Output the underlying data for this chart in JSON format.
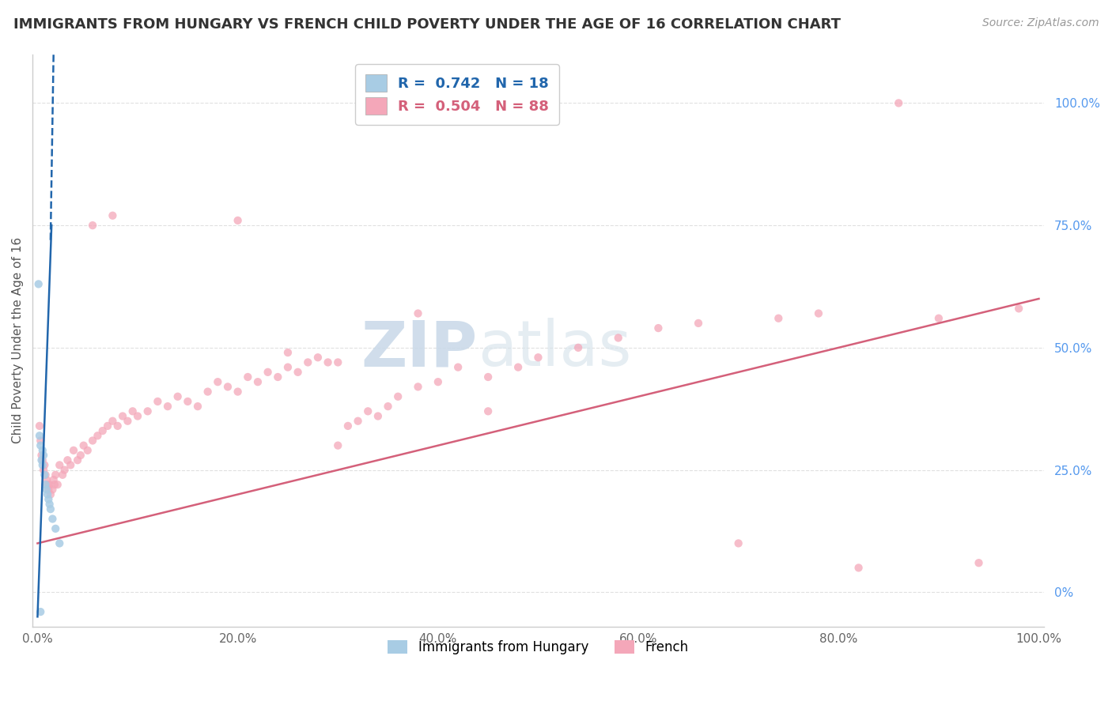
{
  "title": "IMMIGRANTS FROM HUNGARY VS FRENCH CHILD POVERTY UNDER THE AGE OF 16 CORRELATION CHART",
  "source": "Source: ZipAtlas.com",
  "ylabel": "Child Poverty Under the Age of 16",
  "legend_label1": "Immigrants from Hungary",
  "legend_label2": "French",
  "r1": 0.742,
  "n1": 18,
  "r2": 0.504,
  "n2": 88,
  "color1": "#a8cce4",
  "color2": "#f4a7b9",
  "line_color1": "#2166ac",
  "line_color2": "#d4607a",
  "watermark_zip": "ZIP",
  "watermark_atlas": "atlas",
  "blue_scatter_x": [
    0.001,
    0.002,
    0.003,
    0.004,
    0.005,
    0.006,
    0.007,
    0.008,
    0.009,
    0.01,
    0.011,
    0.012,
    0.013,
    0.015,
    0.018,
    0.022,
    0.005,
    0.003
  ],
  "blue_scatter_y": [
    0.63,
    0.32,
    0.3,
    0.27,
    0.26,
    0.28,
    0.24,
    0.22,
    0.21,
    0.2,
    0.19,
    0.18,
    0.17,
    0.15,
    0.13,
    0.1,
    0.29,
    -0.04
  ],
  "blue_line_x0": 0.0,
  "blue_line_x1": 0.017,
  "blue_line_y_intercept": -0.05,
  "blue_line_slope": 42.0,
  "pink_scatter_x": [
    0.002,
    0.003,
    0.004,
    0.005,
    0.006,
    0.007,
    0.008,
    0.009,
    0.01,
    0.011,
    0.012,
    0.013,
    0.015,
    0.016,
    0.017,
    0.018,
    0.02,
    0.022,
    0.025,
    0.027,
    0.03,
    0.033,
    0.036,
    0.04,
    0.043,
    0.046,
    0.05,
    0.055,
    0.06,
    0.065,
    0.07,
    0.075,
    0.08,
    0.085,
    0.09,
    0.095,
    0.1,
    0.11,
    0.12,
    0.13,
    0.14,
    0.15,
    0.16,
    0.17,
    0.18,
    0.19,
    0.2,
    0.21,
    0.22,
    0.23,
    0.24,
    0.25,
    0.26,
    0.27,
    0.28,
    0.29,
    0.3,
    0.31,
    0.32,
    0.33,
    0.34,
    0.35,
    0.36,
    0.38,
    0.4,
    0.42,
    0.45,
    0.48,
    0.5,
    0.54,
    0.58,
    0.62,
    0.66,
    0.7,
    0.74,
    0.78,
    0.82,
    0.86,
    0.9,
    0.94,
    0.98,
    0.055,
    0.075,
    0.2,
    0.25,
    0.3,
    0.38,
    0.45
  ],
  "pink_scatter_y": [
    0.34,
    0.31,
    0.28,
    0.27,
    0.25,
    0.26,
    0.24,
    0.23,
    0.22,
    0.21,
    0.22,
    0.2,
    0.21,
    0.23,
    0.22,
    0.24,
    0.22,
    0.26,
    0.24,
    0.25,
    0.27,
    0.26,
    0.29,
    0.27,
    0.28,
    0.3,
    0.29,
    0.31,
    0.32,
    0.33,
    0.34,
    0.35,
    0.34,
    0.36,
    0.35,
    0.37,
    0.36,
    0.37,
    0.39,
    0.38,
    0.4,
    0.39,
    0.38,
    0.41,
    0.43,
    0.42,
    0.41,
    0.44,
    0.43,
    0.45,
    0.44,
    0.46,
    0.45,
    0.47,
    0.48,
    0.47,
    0.3,
    0.34,
    0.35,
    0.37,
    0.36,
    0.38,
    0.4,
    0.42,
    0.43,
    0.46,
    0.44,
    0.46,
    0.48,
    0.5,
    0.52,
    0.54,
    0.55,
    0.1,
    0.56,
    0.57,
    0.05,
    1.0,
    0.56,
    0.06,
    0.58,
    0.75,
    0.77,
    0.76,
    0.49,
    0.47,
    0.57,
    0.37
  ],
  "xlim": [
    -0.005,
    1.005
  ],
  "ylim": [
    -0.07,
    1.1
  ],
  "xtick_vals": [
    0.0,
    0.2,
    0.4,
    0.6,
    0.8,
    1.0
  ],
  "xtick_labels": [
    "0.0%",
    "20.0%",
    "40.0%",
    "60.0%",
    "80.0%",
    "100.0%"
  ],
  "ytick_vals_right": [
    0.0,
    0.25,
    0.5,
    0.75,
    1.0
  ],
  "ytick_labels_right": [
    "0%",
    "25.0%",
    "50.0%",
    "75.0%",
    "100.0%"
  ],
  "background_color": "#ffffff",
  "grid_color": "#e0e0e0"
}
